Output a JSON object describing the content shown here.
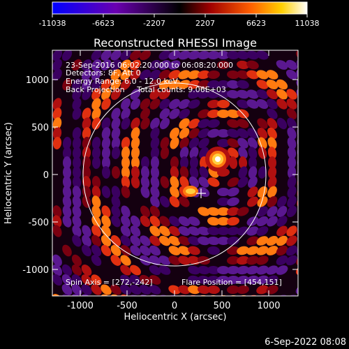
{
  "colorbar": {
    "tick_labels": [
      "-11038",
      "-6623",
      "-2207",
      "2207",
      "6623",
      "11038"
    ],
    "range": [
      -11038,
      11038
    ],
    "colormap": [
      "#0000ff",
      "#6a00b0",
      "#000000",
      "#a00000",
      "#ff6000",
      "#ffd000",
      "#ffffff"
    ]
  },
  "plot": {
    "title": "Reconstructed RHESSI Image",
    "xlabel": "Heliocentric X (arcsec)",
    "ylabel": "Heliocentric Y (arcsec)",
    "x_ticks": [
      "-1000",
      "-500",
      "0",
      "500",
      "1000"
    ],
    "y_ticks": [
      "1000",
      "500",
      "0",
      "-500",
      "-1000"
    ],
    "xlim": [
      -1300,
      1300
    ],
    "ylim": [
      -1300,
      1300
    ],
    "info_lines": [
      "23-Sep-2016 06:02:20.000 to 06:08:20.000",
      "Detectors: 8F, Att 0",
      "Energy Range: 6.0 - 12.0 keV",
      "Back Projection     Total counts: 9.06E+03"
    ],
    "spin_axis": "Spin Axis = [272,-242]",
    "flare_position": "Flare Position = [454,151]",
    "spin_axis_coords": [
      272,
      -242
    ],
    "flare_coords": [
      454,
      151
    ],
    "solar_limb_radius_arcsec": 950
  },
  "timestamp": "6-Sep-2022 08:08"
}
